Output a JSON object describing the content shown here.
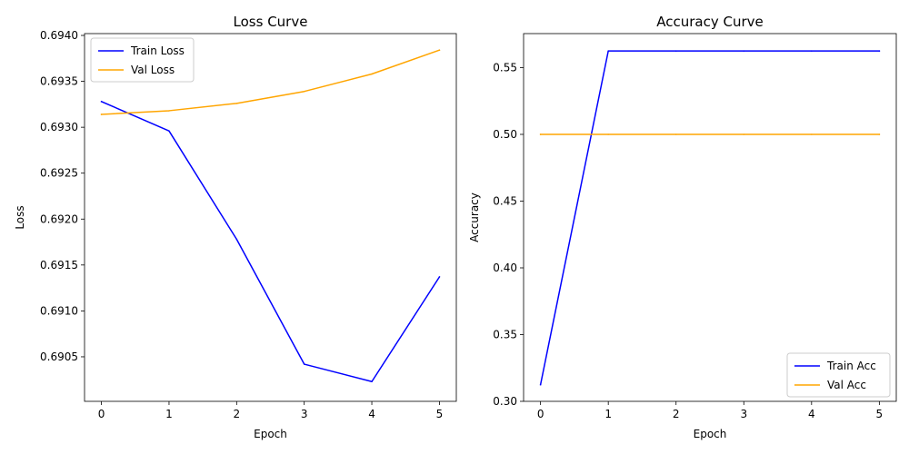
{
  "chart_data": [
    {
      "type": "line",
      "title": "Loss Curve",
      "xlabel": "Epoch",
      "ylabel": "Loss",
      "x": [
        0,
        1,
        2,
        3,
        4,
        5
      ],
      "xlim": [
        -0.25,
        5.25
      ],
      "ylim": [
        0.690015,
        0.69402
      ],
      "xticks": [
        "0",
        "1",
        "2",
        "3",
        "4",
        "5"
      ],
      "yticks": [
        "0.6905",
        "0.6910",
        "0.6915",
        "0.6920",
        "0.6925",
        "0.6930",
        "0.6935",
        "0.6940"
      ],
      "legend_position": "upper-left",
      "series": [
        {
          "name": "Train Loss",
          "color": "#0000ff",
          "values": [
            0.69328,
            0.69296,
            0.69178,
            0.69042,
            0.69023,
            0.69137
          ]
        },
        {
          "name": "Val Loss",
          "color": "#ffa500",
          "values": [
            0.69314,
            0.69318,
            0.69326,
            0.69339,
            0.69358,
            0.69384
          ]
        }
      ]
    },
    {
      "type": "line",
      "title": "Accuracy Curve",
      "xlabel": "Epoch",
      "ylabel": "Accuracy",
      "x": [
        0,
        1,
        2,
        3,
        4,
        5
      ],
      "xlim": [
        -0.25,
        5.25
      ],
      "ylim": [
        0.3,
        0.5755
      ],
      "xticks": [
        "0",
        "1",
        "2",
        "3",
        "4",
        "5"
      ],
      "yticks": [
        "0.30",
        "0.35",
        "0.40",
        "0.45",
        "0.50",
        "0.55"
      ],
      "legend_position": "lower-right",
      "series": [
        {
          "name": "Train Acc",
          "color": "#0000ff",
          "values": [
            0.3125,
            0.5625,
            0.5625,
            0.5625,
            0.5625,
            0.5625
          ]
        },
        {
          "name": "Val Acc",
          "color": "#ffa500",
          "values": [
            0.5,
            0.5,
            0.5,
            0.5,
            0.5,
            0.5
          ]
        }
      ]
    }
  ]
}
